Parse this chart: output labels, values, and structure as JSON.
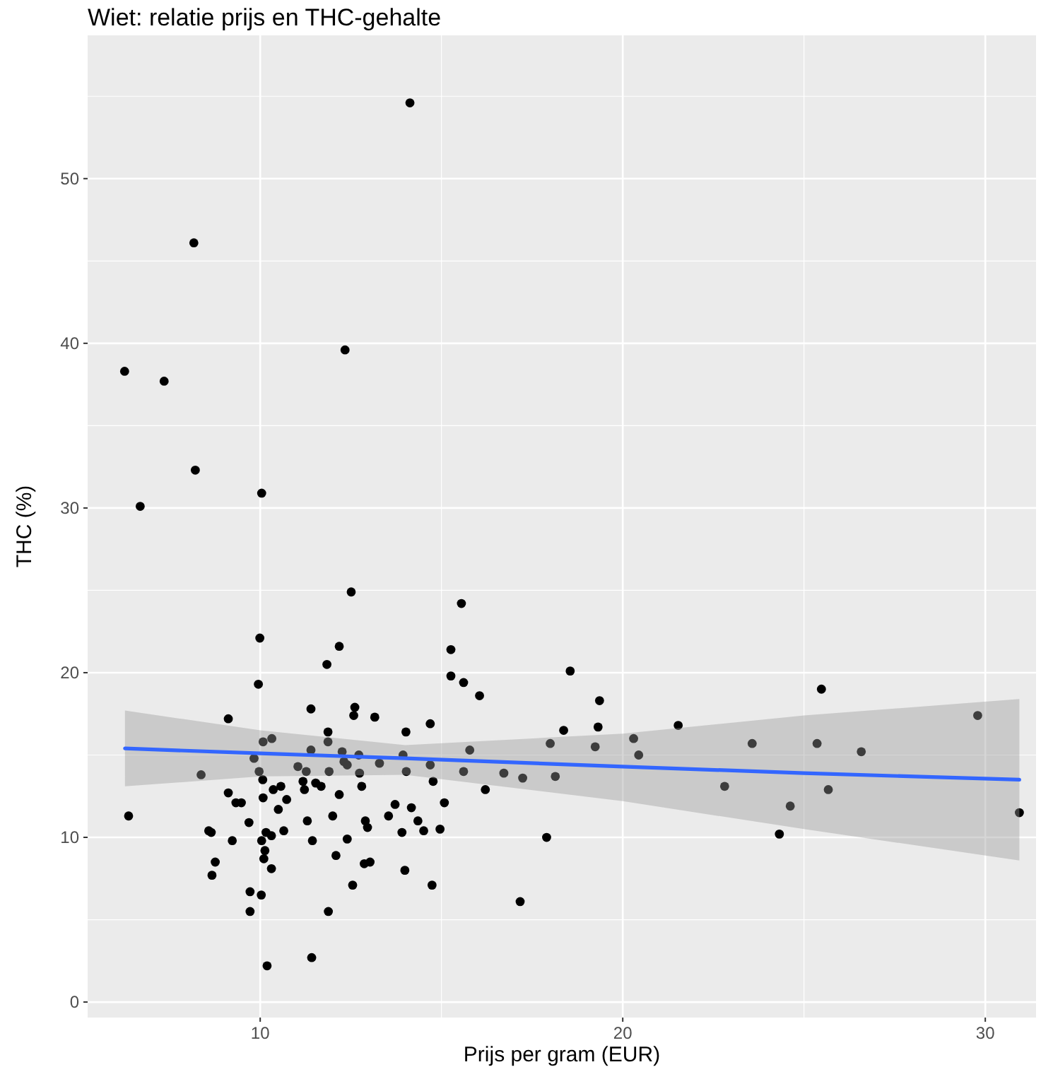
{
  "chart_data": {
    "type": "scatter",
    "title": "Wiet: relatie prijs en THC-gehalte",
    "xlabel": "Prijs per gram (EUR)",
    "ylabel": "THC (%)",
    "xlim": [
      5.24,
      31.4
    ],
    "ylim": [
      -0.94,
      58.7
    ],
    "xticks": [
      10,
      20,
      30
    ],
    "yticks": [
      0,
      10,
      20,
      30,
      40,
      50
    ],
    "grid": true,
    "series": [
      {
        "color": "#000000",
        "marker": "circle",
        "x": [
          14.13,
          8.17,
          6.26,
          7.35,
          12.34,
          8.21,
          10.04,
          6.69,
          9.99,
          11.84,
          12.18,
          9.95,
          11.4,
          9.12,
          11.87,
          10.08,
          10.32,
          11.87,
          11.4,
          9.83,
          8.37,
          9.97,
          11.04,
          11.27,
          11.9,
          10.07,
          11.18,
          11.53,
          11.68,
          11.22,
          10.57,
          10.36,
          9.12,
          9.33,
          9.48,
          10.08,
          10.73,
          10.5,
          12.18,
          6.37,
          12.0,
          9.69,
          11.3,
          8.58,
          8.65,
          10.65,
          10.16,
          10.31,
          9.23,
          10.04,
          11.44,
          10.13,
          10.1,
          12.09,
          8.76,
          10.31,
          8.67,
          9.72,
          10.03,
          9.72,
          11.88,
          11.42,
          10.19,
          12.51,
          15.55,
          15.26,
          15.26,
          15.61,
          16.05,
          12.61,
          12.58,
          13.16,
          14.69,
          14.02,
          12.26,
          12.72,
          13.94,
          15.78,
          12.31,
          12.4,
          13.29,
          14.69,
          12.74,
          14.03,
          15.61,
          16.72,
          17.24,
          12.8,
          14.77,
          16.21,
          13.72,
          15.08,
          13.54,
          14.17,
          12.9,
          12.96,
          14.35,
          13.91,
          14.51,
          14.96,
          12.4,
          12.87,
          13.03,
          13.99,
          12.55,
          14.74,
          17.17,
          18.55,
          19.36,
          25.48,
          18.37,
          19.32,
          21.53,
          29.79,
          18.0,
          19.24,
          20.3,
          20.44,
          23.57,
          25.36,
          26.58,
          18.14,
          22.81,
          25.67,
          24.62,
          30.94,
          17.9,
          24.32
        ],
        "values": [
          54.6,
          46.1,
          38.3,
          37.7,
          39.6,
          32.3,
          30.9,
          30.1,
          22.1,
          20.5,
          21.6,
          19.3,
          17.8,
          17.2,
          16.4,
          15.8,
          16.0,
          15.8,
          15.3,
          14.8,
          13.8,
          14.0,
          14.3,
          14.0,
          14.0,
          13.5,
          13.4,
          13.3,
          13.1,
          12.9,
          13.1,
          12.9,
          12.7,
          12.1,
          12.1,
          12.4,
          12.3,
          11.7,
          12.6,
          11.3,
          11.3,
          10.9,
          11.0,
          10.4,
          10.3,
          10.4,
          10.3,
          10.1,
          9.8,
          9.8,
          9.8,
          9.2,
          8.7,
          8.9,
          8.5,
          8.1,
          7.7,
          6.7,
          6.5,
          5.5,
          5.5,
          2.7,
          2.2,
          24.9,
          24.2,
          21.4,
          19.8,
          19.4,
          18.6,
          17.9,
          17.4,
          17.3,
          16.9,
          16.4,
          15.2,
          15.0,
          15.0,
          15.3,
          14.6,
          14.4,
          14.5,
          14.4,
          13.9,
          14.0,
          14.0,
          13.9,
          13.6,
          13.1,
          13.4,
          12.9,
          12.0,
          12.1,
          11.3,
          11.8,
          11.0,
          10.6,
          11.0,
          10.3,
          10.4,
          10.5,
          9.9,
          8.4,
          8.5,
          8.0,
          7.1,
          7.1,
          6.1,
          20.1,
          18.3,
          19.0,
          16.5,
          16.7,
          16.8,
          17.4,
          15.7,
          15.5,
          16.0,
          15.0,
          15.7,
          15.7,
          15.2,
          13.7,
          13.1,
          12.9,
          11.9,
          11.5,
          10.0,
          10.2
        ]
      },
      {
        "type": "line",
        "color": "#3366ff",
        "marker": "none",
        "x": [
          6.27,
          10,
          14,
          20,
          25,
          30.94
        ],
        "values": [
          15.4,
          15.1,
          14.8,
          14.3,
          13.9,
          13.5
        ],
        "lower": [
          13.1,
          13.7,
          13.8,
          12.2,
          10.5,
          8.6
        ],
        "upper": [
          17.7,
          16.5,
          15.6,
          16.3,
          17.4,
          18.4
        ]
      }
    ]
  }
}
